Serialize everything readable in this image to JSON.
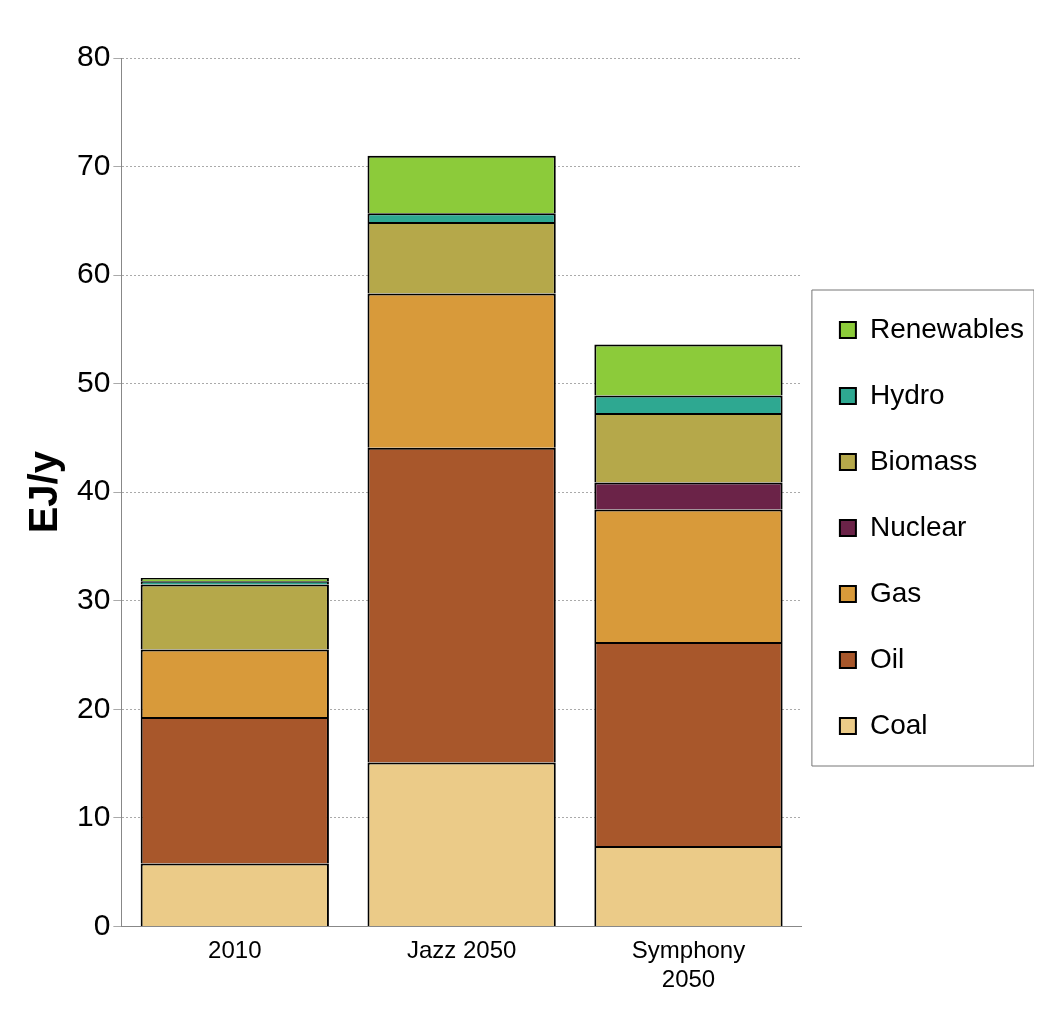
{
  "chart_data": {
    "type": "bar",
    "stacked": true,
    "ylabel": "EJ/y",
    "categories": [
      "2010",
      "Jazz 2050",
      "Symphony 2050"
    ],
    "ylim": [
      0,
      80
    ],
    "yticks": [
      0,
      10,
      20,
      30,
      40,
      50,
      60,
      70,
      80
    ],
    "grid": "y",
    "legend": "right",
    "series": [
      {
        "name": "Coal",
        "color": "#ebcb88",
        "values": [
          5.8,
          15.1,
          7.4
        ]
      },
      {
        "name": "Oil",
        "color": "#a8572b",
        "values": [
          13.5,
          29.0,
          18.8
        ]
      },
      {
        "name": "Gas",
        "color": "#d89a3a",
        "values": [
          6.2,
          14.2,
          12.2
        ]
      },
      {
        "name": "Nuclear",
        "color": "#6b2348",
        "values": [
          null,
          null,
          2.5
        ]
      },
      {
        "name": "Biomass",
        "color": "#b5a84a",
        "values": [
          6.0,
          6.6,
          6.4
        ]
      },
      {
        "name": "Hydro",
        "color": "#2ea891",
        "values": [
          0.3,
          0.8,
          1.6
        ]
      },
      {
        "name": "Renewables",
        "color": "#8ccb3a",
        "values": [
          0.3,
          5.3,
          4.7
        ]
      }
    ]
  }
}
